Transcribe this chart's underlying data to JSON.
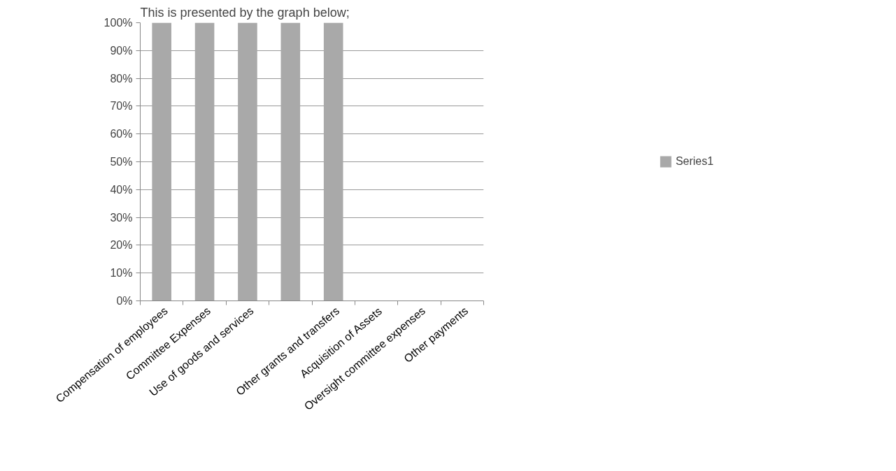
{
  "chart_data": {
    "type": "bar",
    "title": "This is presented by the graph below;",
    "categories": [
      "Compensation of employees",
      "Committee Expenses",
      "Use of goods and services",
      null,
      "Other grants and transfers",
      "Acquisition of Assets",
      "Oversight committee expenses",
      "Other payments"
    ],
    "series": [
      {
        "name": "Series1",
        "color": "#a9a9a9",
        "values": [
          100,
          100,
          100,
          100,
          100,
          0,
          0,
          0
        ]
      }
    ],
    "ylim": [
      0,
      100
    ],
    "yticks": [
      {
        "value": 0,
        "label": "0%"
      },
      {
        "value": 10,
        "label": "10%"
      },
      {
        "value": 20,
        "label": "20%"
      },
      {
        "value": 30,
        "label": "30%"
      },
      {
        "value": 40,
        "label": "40%"
      },
      {
        "value": 50,
        "label": "50%"
      },
      {
        "value": 60,
        "label": "60%"
      },
      {
        "value": 70,
        "label": "70%"
      },
      {
        "value": 80,
        "label": "80%"
      },
      {
        "value": 90,
        "label": "90%"
      },
      {
        "value": 100,
        "label": "100%"
      }
    ],
    "grid": "y",
    "legend": "right"
  }
}
